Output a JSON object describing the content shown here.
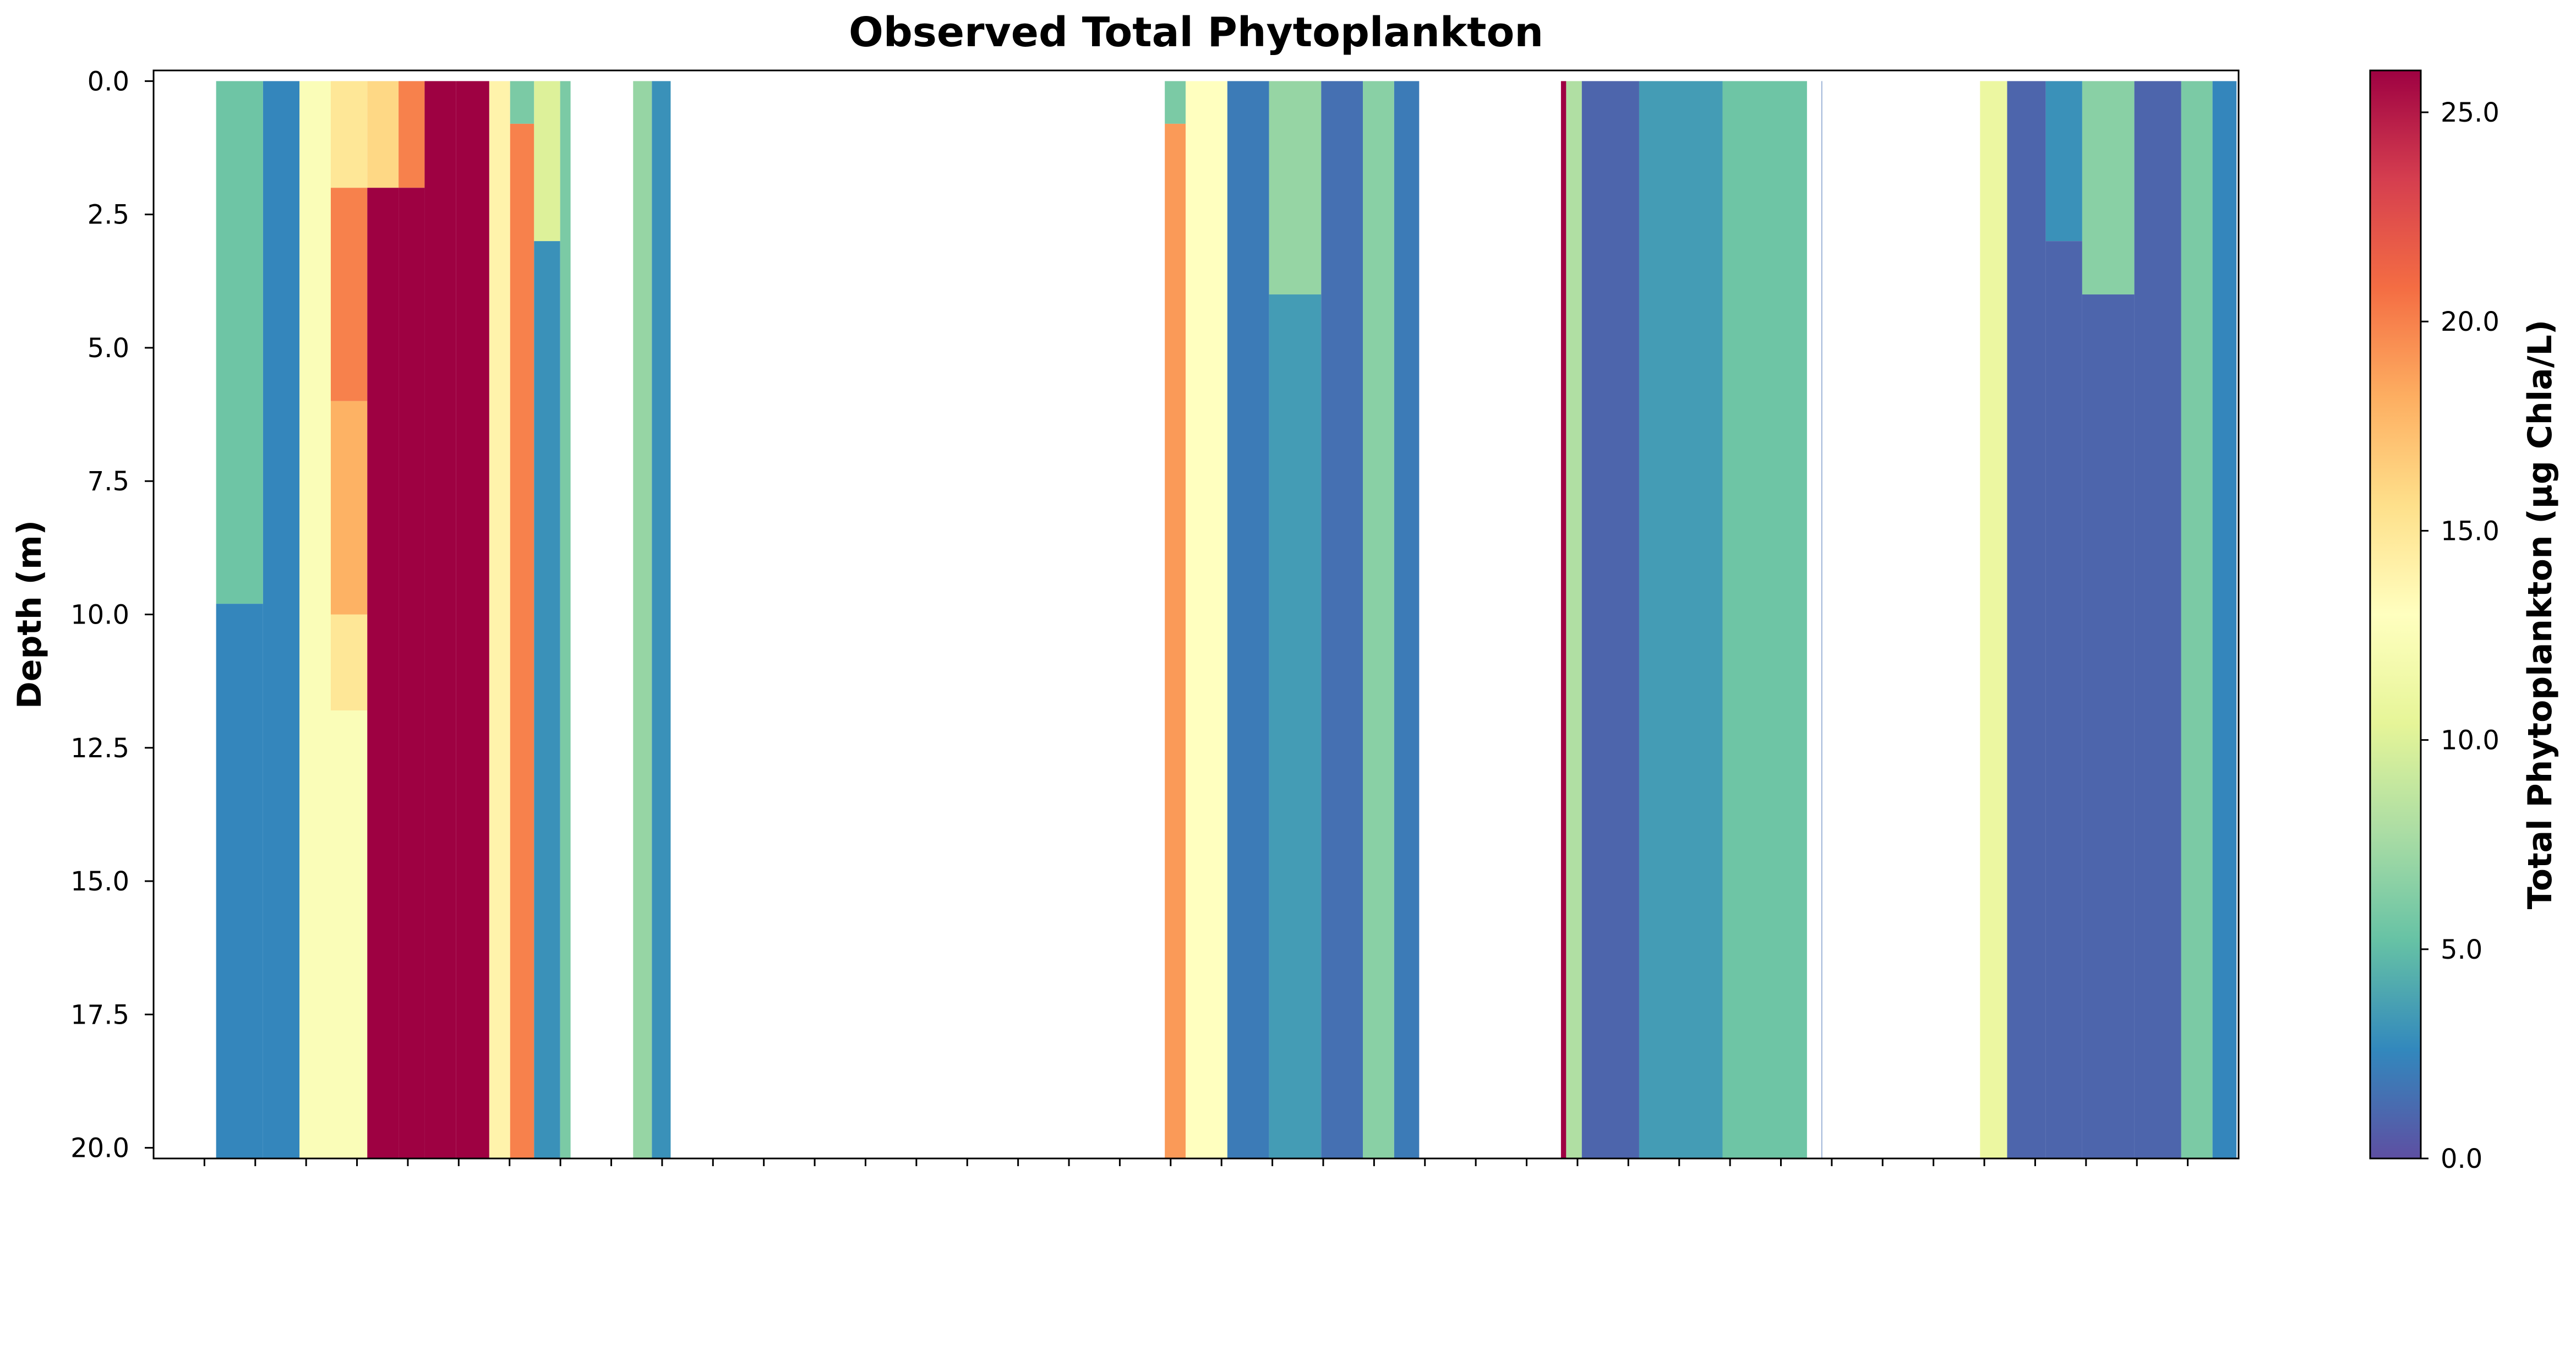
{
  "chart_data": {
    "type": "heatmap",
    "title": "Observed Total Phytoplankton",
    "ylabel": "Depth (m)",
    "xlabel": "",
    "ylim": [
      20.0,
      0.0
    ],
    "y_inverted": true,
    "yticks": [
      "0.0",
      "2.5",
      "5.0",
      "7.5",
      "10.0",
      "12.5",
      "15.0",
      "17.5",
      "20.0"
    ],
    "ytick_values": [
      0,
      2.5,
      5,
      7.5,
      10,
      12.5,
      15,
      17.5,
      20
    ],
    "xtick_count": 40,
    "colormap": "Spectral_r",
    "colorbar": {
      "label": "Total Phytoplankton (μg Chla/L)",
      "ticks": [
        "0.0",
        "5.0",
        "10.0",
        "15.0",
        "20.0",
        "25.0"
      ],
      "tick_values": [
        0,
        5,
        10,
        15,
        20,
        25
      ],
      "range": [
        0,
        26
      ]
    },
    "profiles": [
      {
        "x": 0.04,
        "depth_layers": [
          {
            "from": 0,
            "to": 9.8,
            "value": 5.5
          },
          {
            "from": 9.8,
            "to": 20.2,
            "value": 2.5
          }
        ]
      },
      {
        "x": 0.065,
        "depth_layers": [
          {
            "from": 0,
            "to": 20.2,
            "value": 2.5
          }
        ]
      },
      {
        "x": 0.075,
        "depth_layers": [
          {
            "from": 0,
            "to": 20.2,
            "value": 12.5
          }
        ]
      },
      {
        "x": 0.095,
        "depth_layers": [
          {
            "from": 0,
            "to": 2.0,
            "value": 15.0
          },
          {
            "from": 2.0,
            "to": 6.0,
            "value": 20.0
          },
          {
            "from": 6.0,
            "to": 10.0,
            "value": 18.0
          },
          {
            "from": 10.0,
            "to": 11.8,
            "value": 15.0
          },
          {
            "from": 11.8,
            "to": 20.2,
            "value": 12.5
          }
        ]
      },
      {
        "x": 0.11,
        "depth_layers": [
          {
            "from": 0,
            "to": 2.0,
            "value": 16.0
          },
          {
            "from": 2.0,
            "to": 20.2,
            "value": 26.0
          }
        ]
      },
      {
        "x": 0.125,
        "depth_layers": [
          {
            "from": 0,
            "to": 2.0,
            "value": 20.0
          },
          {
            "from": 2.0,
            "to": 20.2,
            "value": 26.0
          }
        ]
      },
      {
        "x": 0.135,
        "depth_layers": [
          {
            "from": 0,
            "to": 20.2,
            "value": 26.0
          }
        ]
      },
      {
        "x": 0.155,
        "depth_layers": [
          {
            "from": 0,
            "to": 20.2,
            "value": 26.0
          }
        ]
      },
      {
        "x": 0.167,
        "depth_layers": [
          {
            "from": 0,
            "to": 20.2,
            "value": 14.0
          }
        ]
      },
      {
        "x": 0.175,
        "depth_layers": [
          {
            "from": 0,
            "to": 0.8,
            "value": 6.0
          },
          {
            "from": 0.8,
            "to": 20.2,
            "value": 20.0
          }
        ]
      },
      {
        "x": 0.19,
        "depth_layers": [
          {
            "from": 0,
            "to": 3.0,
            "value": 10.0
          },
          {
            "from": 3.0,
            "to": 20.2,
            "value": 3.0
          }
        ]
      },
      {
        "x": 0.2,
        "depth_layers": [
          {
            "from": 0,
            "to": 20.2,
            "value": 6.0
          }
        ]
      },
      {
        "x": 0.23,
        "depth_layers": [
          {
            "from": 0,
            "to": 20.2,
            "value": 7.0
          }
        ]
      },
      {
        "x": 0.248,
        "depth_layers": [
          {
            "from": 0,
            "to": 20.2,
            "value": 3.0
          }
        ]
      },
      {
        "x": 0.485,
        "depth_layers": [
          {
            "from": 0,
            "to": 0.8,
            "value": 6.0
          },
          {
            "from": 0.8,
            "to": 20.2,
            "value": 19.0
          }
        ]
      },
      {
        "x": 0.505,
        "depth_layers": [
          {
            "from": 0,
            "to": 20.2,
            "value": 13.0
          }
        ]
      },
      {
        "x": 0.525,
        "depth_layers": [
          {
            "from": 0,
            "to": 20.2,
            "value": 2.0
          }
        ]
      },
      {
        "x": 0.545,
        "depth_layers": [
          {
            "from": 0,
            "to": 4.0,
            "value": 7.0
          },
          {
            "from": 4.0,
            "to": 20.2,
            "value": 3.5
          }
        ]
      },
      {
        "x": 0.575,
        "depth_layers": [
          {
            "from": 0,
            "to": 20.2,
            "value": 1.5
          }
        ]
      },
      {
        "x": 0.585,
        "depth_layers": [
          {
            "from": 0,
            "to": 20.2,
            "value": 6.5
          }
        ]
      },
      {
        "x": 0.605,
        "depth_layers": [
          {
            "from": 0,
            "to": 20.2,
            "value": 2.0
          }
        ]
      },
      {
        "x": 0.675,
        "depth_layers": [
          {
            "from": 0,
            "to": 20.2,
            "value": 26.0
          }
        ]
      },
      {
        "x": 0.68,
        "depth_layers": [
          {
            "from": 0,
            "to": 20.2,
            "value": 8.0
          }
        ]
      },
      {
        "x": 0.69,
        "depth_layers": [
          {
            "from": 0,
            "to": 20.2,
            "value": 1.0
          }
        ]
      },
      {
        "x": 0.735,
        "depth_layers": [
          {
            "from": 0,
            "to": 20.2,
            "value": 3.5
          }
        ]
      },
      {
        "x": 0.77,
        "depth_layers": [
          {
            "from": 0,
            "to": 20.2,
            "value": 5.5
          }
        ]
      },
      {
        "x": 0.8,
        "depth_layers": [
          {
            "from": 0,
            "to": 20.2,
            "value": 1.5
          }
        ]
      },
      {
        "x": 0.878,
        "depth_layers": [
          {
            "from": 0,
            "to": 20.2,
            "value": 11.0
          }
        ]
      },
      {
        "x": 0.9,
        "depth_layers": [
          {
            "from": 0,
            "to": 20.2,
            "value": 1.0
          }
        ]
      },
      {
        "x": 0.915,
        "depth_layers": [
          {
            "from": 0,
            "to": 3.0,
            "value": 3.0
          },
          {
            "from": 3.0,
            "to": 20.2,
            "value": 1.0
          }
        ]
      },
      {
        "x": 0.935,
        "depth_layers": [
          {
            "from": 0,
            "to": 4.0,
            "value": 6.5
          },
          {
            "from": 4.0,
            "to": 20.2,
            "value": 1.0
          }
        ]
      },
      {
        "x": 0.965,
        "depth_layers": [
          {
            "from": 0,
            "to": 20.2,
            "value": 1.0
          }
        ]
      },
      {
        "x": 0.98,
        "depth_layers": [
          {
            "from": 0,
            "to": 20.2,
            "value": 6.0
          }
        ]
      },
      {
        "x": 0.995,
        "depth_layers": [
          {
            "from": 0,
            "to": 20.2,
            "value": 2.5
          }
        ]
      }
    ],
    "data_blocks": [
      {
        "x_start": 0.03,
        "x_end": 0.2
      },
      {
        "x_start": 0.49,
        "x_end": 0.607
      },
      {
        "x_start": 0.675,
        "x_end": 0.793
      },
      {
        "x_start": 0.876,
        "x_end": 0.999
      }
    ]
  }
}
